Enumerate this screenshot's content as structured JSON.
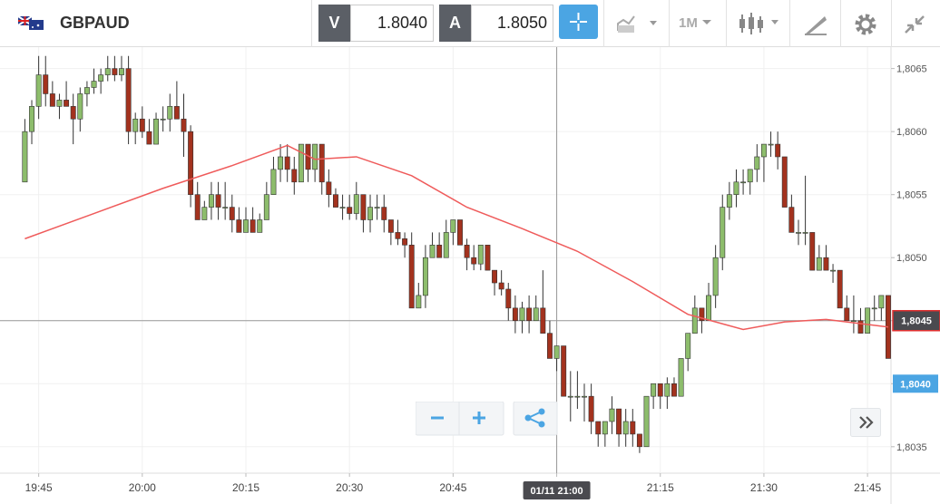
{
  "header": {
    "symbol": "GBPAUD",
    "bid_label": "V",
    "bid": "1.8040",
    "ask_label": "A",
    "ask": "1.8050",
    "timeframe": "1M"
  },
  "chart_data": {
    "type": "candlestick",
    "candles": [
      [
        1.8056,
        1.8061,
        1.8056,
        1.806
      ],
      [
        1.806,
        1.80625,
        1.8059,
        1.8062
      ],
      [
        1.8062,
        1.8066,
        1.8061,
        1.80645
      ],
      [
        1.80645,
        1.8066,
        1.8062,
        1.8063
      ],
      [
        1.8063,
        1.8064,
        1.8062,
        1.8062
      ],
      [
        1.8062,
        1.8063,
        1.8061,
        1.80625
      ],
      [
        1.80625,
        1.8064,
        1.8062,
        1.8062
      ],
      [
        1.8062,
        1.8063,
        1.8059,
        1.8061
      ],
      [
        1.8061,
        1.80635,
        1.806,
        1.8063
      ],
      [
        1.8063,
        1.8064,
        1.8062,
        1.80635
      ],
      [
        1.80635,
        1.8065,
        1.8063,
        1.8064
      ],
      [
        1.8064,
        1.8065,
        1.8063,
        1.80645
      ],
      [
        1.80645,
        1.8066,
        1.8064,
        1.8065
      ],
      [
        1.8065,
        1.8066,
        1.8064,
        1.80645
      ],
      [
        1.80645,
        1.8066,
        1.8064,
        1.8065
      ],
      [
        1.8065,
        1.8066,
        1.8059,
        1.806
      ],
      [
        1.806,
        1.80615,
        1.8059,
        1.8061
      ],
      [
        1.8061,
        1.8062,
        1.80595,
        1.806
      ],
      [
        1.806,
        1.8061,
        1.8059,
        1.8059
      ],
      [
        1.8059,
        1.80615,
        1.8059,
        1.8061
      ],
      [
        1.8061,
        1.8062,
        1.806,
        1.8061
      ],
      [
        1.8061,
        1.8063,
        1.806,
        1.8062
      ],
      [
        1.8062,
        1.8064,
        1.8061,
        1.8061
      ],
      [
        1.8061,
        1.8063,
        1.8058,
        1.806
      ],
      [
        1.806,
        1.80605,
        1.8054,
        1.8055
      ],
      [
        1.8055,
        1.8056,
        1.8053,
        1.8053
      ],
      [
        1.8053,
        1.80545,
        1.8053,
        1.8054
      ],
      [
        1.8054,
        1.8056,
        1.8053,
        1.8055
      ],
      [
        1.8055,
        1.8056,
        1.8053,
        1.8054
      ],
      [
        1.8054,
        1.8056,
        1.8053,
        1.8054
      ],
      [
        1.8054,
        1.8055,
        1.8052,
        1.8053
      ],
      [
        1.8053,
        1.8054,
        1.8052,
        1.8052
      ],
      [
        1.8052,
        1.8054,
        1.8052,
        1.8053
      ],
      [
        1.8053,
        1.8054,
        1.8052,
        1.8052
      ],
      [
        1.8052,
        1.80535,
        1.8052,
        1.8053
      ],
      [
        1.8053,
        1.8056,
        1.8053,
        1.8055
      ],
      [
        1.8055,
        1.8058,
        1.8055,
        1.8057
      ],
      [
        1.8057,
        1.8059,
        1.8056,
        1.8058
      ],
      [
        1.8058,
        1.8059,
        1.8056,
        1.8057
      ],
      [
        1.8057,
        1.8058,
        1.8055,
        1.8056
      ],
      [
        1.8056,
        1.8059,
        1.8056,
        1.8059
      ],
      [
        1.8059,
        1.8059,
        1.8056,
        1.8057
      ],
      [
        1.8057,
        1.8059,
        1.8056,
        1.8059
      ],
      [
        1.8059,
        1.8059,
        1.8055,
        1.8056
      ],
      [
        1.8056,
        1.8057,
        1.8054,
        1.8055
      ],
      [
        1.8055,
        1.80555,
        1.8054,
        1.8054
      ],
      [
        1.8054,
        1.8055,
        1.8053,
        1.8054
      ],
      [
        1.8054,
        1.8055,
        1.8053,
        1.80535
      ],
      [
        1.80535,
        1.8056,
        1.8053,
        1.8055
      ],
      [
        1.8055,
        1.8055,
        1.8052,
        1.8053
      ],
      [
        1.8053,
        1.8055,
        1.8052,
        1.8054
      ],
      [
        1.8054,
        1.8055,
        1.8053,
        1.8054
      ],
      [
        1.8054,
        1.8055,
        1.8052,
        1.8053
      ],
      [
        1.8053,
        1.8053,
        1.8051,
        1.8052
      ],
      [
        1.8052,
        1.8053,
        1.8051,
        1.80515
      ],
      [
        1.80515,
        1.8052,
        1.805,
        1.8051
      ],
      [
        1.8051,
        1.8052,
        1.8046,
        1.8046
      ],
      [
        1.8046,
        1.8048,
        1.8046,
        1.8047
      ],
      [
        1.8047,
        1.8051,
        1.8046,
        1.805
      ],
      [
        1.805,
        1.8052,
        1.805,
        1.8051
      ],
      [
        1.8051,
        1.8052,
        1.805,
        1.805
      ],
      [
        1.805,
        1.8053,
        1.805,
        1.8052
      ],
      [
        1.8052,
        1.8053,
        1.8051,
        1.8053
      ],
      [
        1.8053,
        1.8053,
        1.8051,
        1.8051
      ],
      [
        1.8051,
        1.80515,
        1.8049,
        1.805
      ],
      [
        1.805,
        1.8051,
        1.8049,
        1.80495
      ],
      [
        1.80495,
        1.8051,
        1.8049,
        1.8051
      ],
      [
        1.8051,
        1.8051,
        1.8049,
        1.8049
      ],
      [
        1.8049,
        1.8049,
        1.8047,
        1.8048
      ],
      [
        1.8048,
        1.8049,
        1.8047,
        1.80475
      ],
      [
        1.80475,
        1.8048,
        1.8045,
        1.8046
      ],
      [
        1.8046,
        1.8047,
        1.8044,
        1.8045
      ],
      [
        1.8045,
        1.80465,
        1.8044,
        1.8046
      ],
      [
        1.8046,
        1.8047,
        1.8044,
        1.8045
      ],
      [
        1.8045,
        1.8047,
        1.8045,
        1.8046
      ],
      [
        1.8046,
        1.8049,
        1.8044,
        1.8044
      ],
      [
        1.8044,
        1.8045,
        1.8042,
        1.8042
      ],
      [
        1.8042,
        1.8043,
        1.8041,
        1.8043
      ],
      [
        1.8043,
        1.8043,
        1.8039,
        1.8039
      ],
      [
        1.8039,
        1.8041,
        1.8037,
        1.8039
      ],
      [
        1.8039,
        1.8041,
        1.8038,
        1.8039
      ],
      [
        1.8039,
        1.804,
        1.8037,
        1.8039
      ],
      [
        1.8039,
        1.804,
        1.8036,
        1.8037
      ],
      [
        1.8037,
        1.8037,
        1.8035,
        1.8036
      ],
      [
        1.8036,
        1.8037,
        1.8035,
        1.8037
      ],
      [
        1.8037,
        1.8039,
        1.8036,
        1.8038
      ],
      [
        1.8038,
        1.8038,
        1.8035,
        1.8036
      ],
      [
        1.8036,
        1.8038,
        1.8035,
        1.8037
      ],
      [
        1.8037,
        1.8038,
        1.8035,
        1.8036
      ],
      [
        1.8036,
        1.8036,
        1.80345,
        1.8035
      ],
      [
        1.8035,
        1.8039,
        1.8035,
        1.8039
      ],
      [
        1.8039,
        1.804,
        1.8038,
        1.804
      ],
      [
        1.804,
        1.804,
        1.8038,
        1.8039
      ],
      [
        1.8039,
        1.80405,
        1.8038,
        1.804
      ],
      [
        1.804,
        1.80405,
        1.8039,
        1.8039
      ],
      [
        1.8039,
        1.8042,
        1.8039,
        1.8042
      ],
      [
        1.8042,
        1.8044,
        1.8041,
        1.8044
      ],
      [
        1.8044,
        1.8047,
        1.8044,
        1.8046
      ],
      [
        1.8046,
        1.8046,
        1.8044,
        1.8045
      ],
      [
        1.8045,
        1.8048,
        1.8045,
        1.8047
      ],
      [
        1.8047,
        1.8051,
        1.8046,
        1.805
      ],
      [
        1.805,
        1.8055,
        1.8049,
        1.8054
      ],
      [
        1.8054,
        1.8056,
        1.8053,
        1.8055
      ],
      [
        1.8055,
        1.8057,
        1.8054,
        1.8056
      ],
      [
        1.8056,
        1.8057,
        1.8055,
        1.8056
      ],
      [
        1.8056,
        1.8057,
        1.8055,
        1.8057
      ],
      [
        1.8057,
        1.8059,
        1.8056,
        1.8058
      ],
      [
        1.8058,
        1.8059,
        1.8056,
        1.8059
      ],
      [
        1.8059,
        1.806,
        1.8058,
        1.8059
      ],
      [
        1.8059,
        1.806,
        1.8057,
        1.8058
      ],
      [
        1.8058,
        1.8058,
        1.8054,
        1.8054
      ],
      [
        1.8054,
        1.8055,
        1.8052,
        1.8052
      ],
      [
        1.8052,
        1.8053,
        1.8051,
        1.8052
      ],
      [
        1.8052,
        1.80565,
        1.8051,
        1.8052
      ],
      [
        1.8052,
        1.8052,
        1.8049,
        1.8049
      ],
      [
        1.8049,
        1.8051,
        1.8049,
        1.805
      ],
      [
        1.805,
        1.8051,
        1.8049,
        1.8049
      ],
      [
        1.8049,
        1.80495,
        1.8048,
        1.8049
      ],
      [
        1.8049,
        1.8049,
        1.8046,
        1.8046
      ],
      [
        1.8046,
        1.8047,
        1.8045,
        1.8045
      ],
      [
        1.8045,
        1.8047,
        1.8044,
        1.8045
      ],
      [
        1.8045,
        1.8046,
        1.8044,
        1.8044
      ],
      [
        1.8044,
        1.8046,
        1.8044,
        1.8046
      ],
      [
        1.8046,
        1.8047,
        1.8045,
        1.8046
      ],
      [
        1.8046,
        1.8047,
        1.8045,
        1.8047
      ],
      [
        1.8047,
        1.8047,
        1.8042,
        1.8042
      ]
    ],
    "colors": {
      "up": "#8dbd6c",
      "down": "#a3321e"
    },
    "moving_average": {
      "color": "#ef5b5b",
      "x": [
        0,
        10,
        20,
        30,
        38,
        42,
        48,
        56,
        64,
        72,
        80,
        88,
        96,
        104,
        110,
        116,
        125
      ],
      "values": [
        1.80515,
        1.80535,
        1.80555,
        1.80573,
        1.80589,
        1.80578,
        1.8058,
        1.80565,
        1.8054,
        1.80523,
        1.80505,
        1.80481,
        1.80455,
        1.80443,
        1.80449,
        1.80451,
        1.80445
      ]
    },
    "xlim": [
      -3.6,
      125.4
    ],
    "ylim": [
      1.80329,
      1.80667
    ],
    "yticks": [
      {
        "value": 1.8035,
        "label": "1,8035"
      },
      {
        "value": 1.804,
        "label": "1,8040"
      },
      {
        "value": 1.8045,
        "label": "1,8045"
      },
      {
        "value": 1.805,
        "label": "1,8050"
      },
      {
        "value": 1.8055,
        "label": "1,8055"
      },
      {
        "value": 1.806,
        "label": "1,8060"
      },
      {
        "value": 1.8065,
        "label": "1,8065"
      }
    ],
    "xticks": [
      {
        "value": 2,
        "label": "19:45"
      },
      {
        "value": 17,
        "label": "20:00"
      },
      {
        "value": 32,
        "label": "20:15"
      },
      {
        "value": 47,
        "label": "20:30"
      },
      {
        "value": 62,
        "label": "20:45"
      },
      {
        "value": 77,
        "label": "21:00"
      },
      {
        "value": 92,
        "label": "21:15"
      },
      {
        "value": 107,
        "label": "21:30"
      },
      {
        "value": 122,
        "label": "21:45"
      }
    ],
    "grid": true,
    "last_price": {
      "value": 1.8045,
      "label": "1,8045"
    },
    "bid_price": {
      "value": 1.804,
      "label": "1,8040"
    },
    "crosshair": {
      "x": {
        "value": 77,
        "label": "01/11 21:00"
      },
      "y": 1.8045
    }
  }
}
